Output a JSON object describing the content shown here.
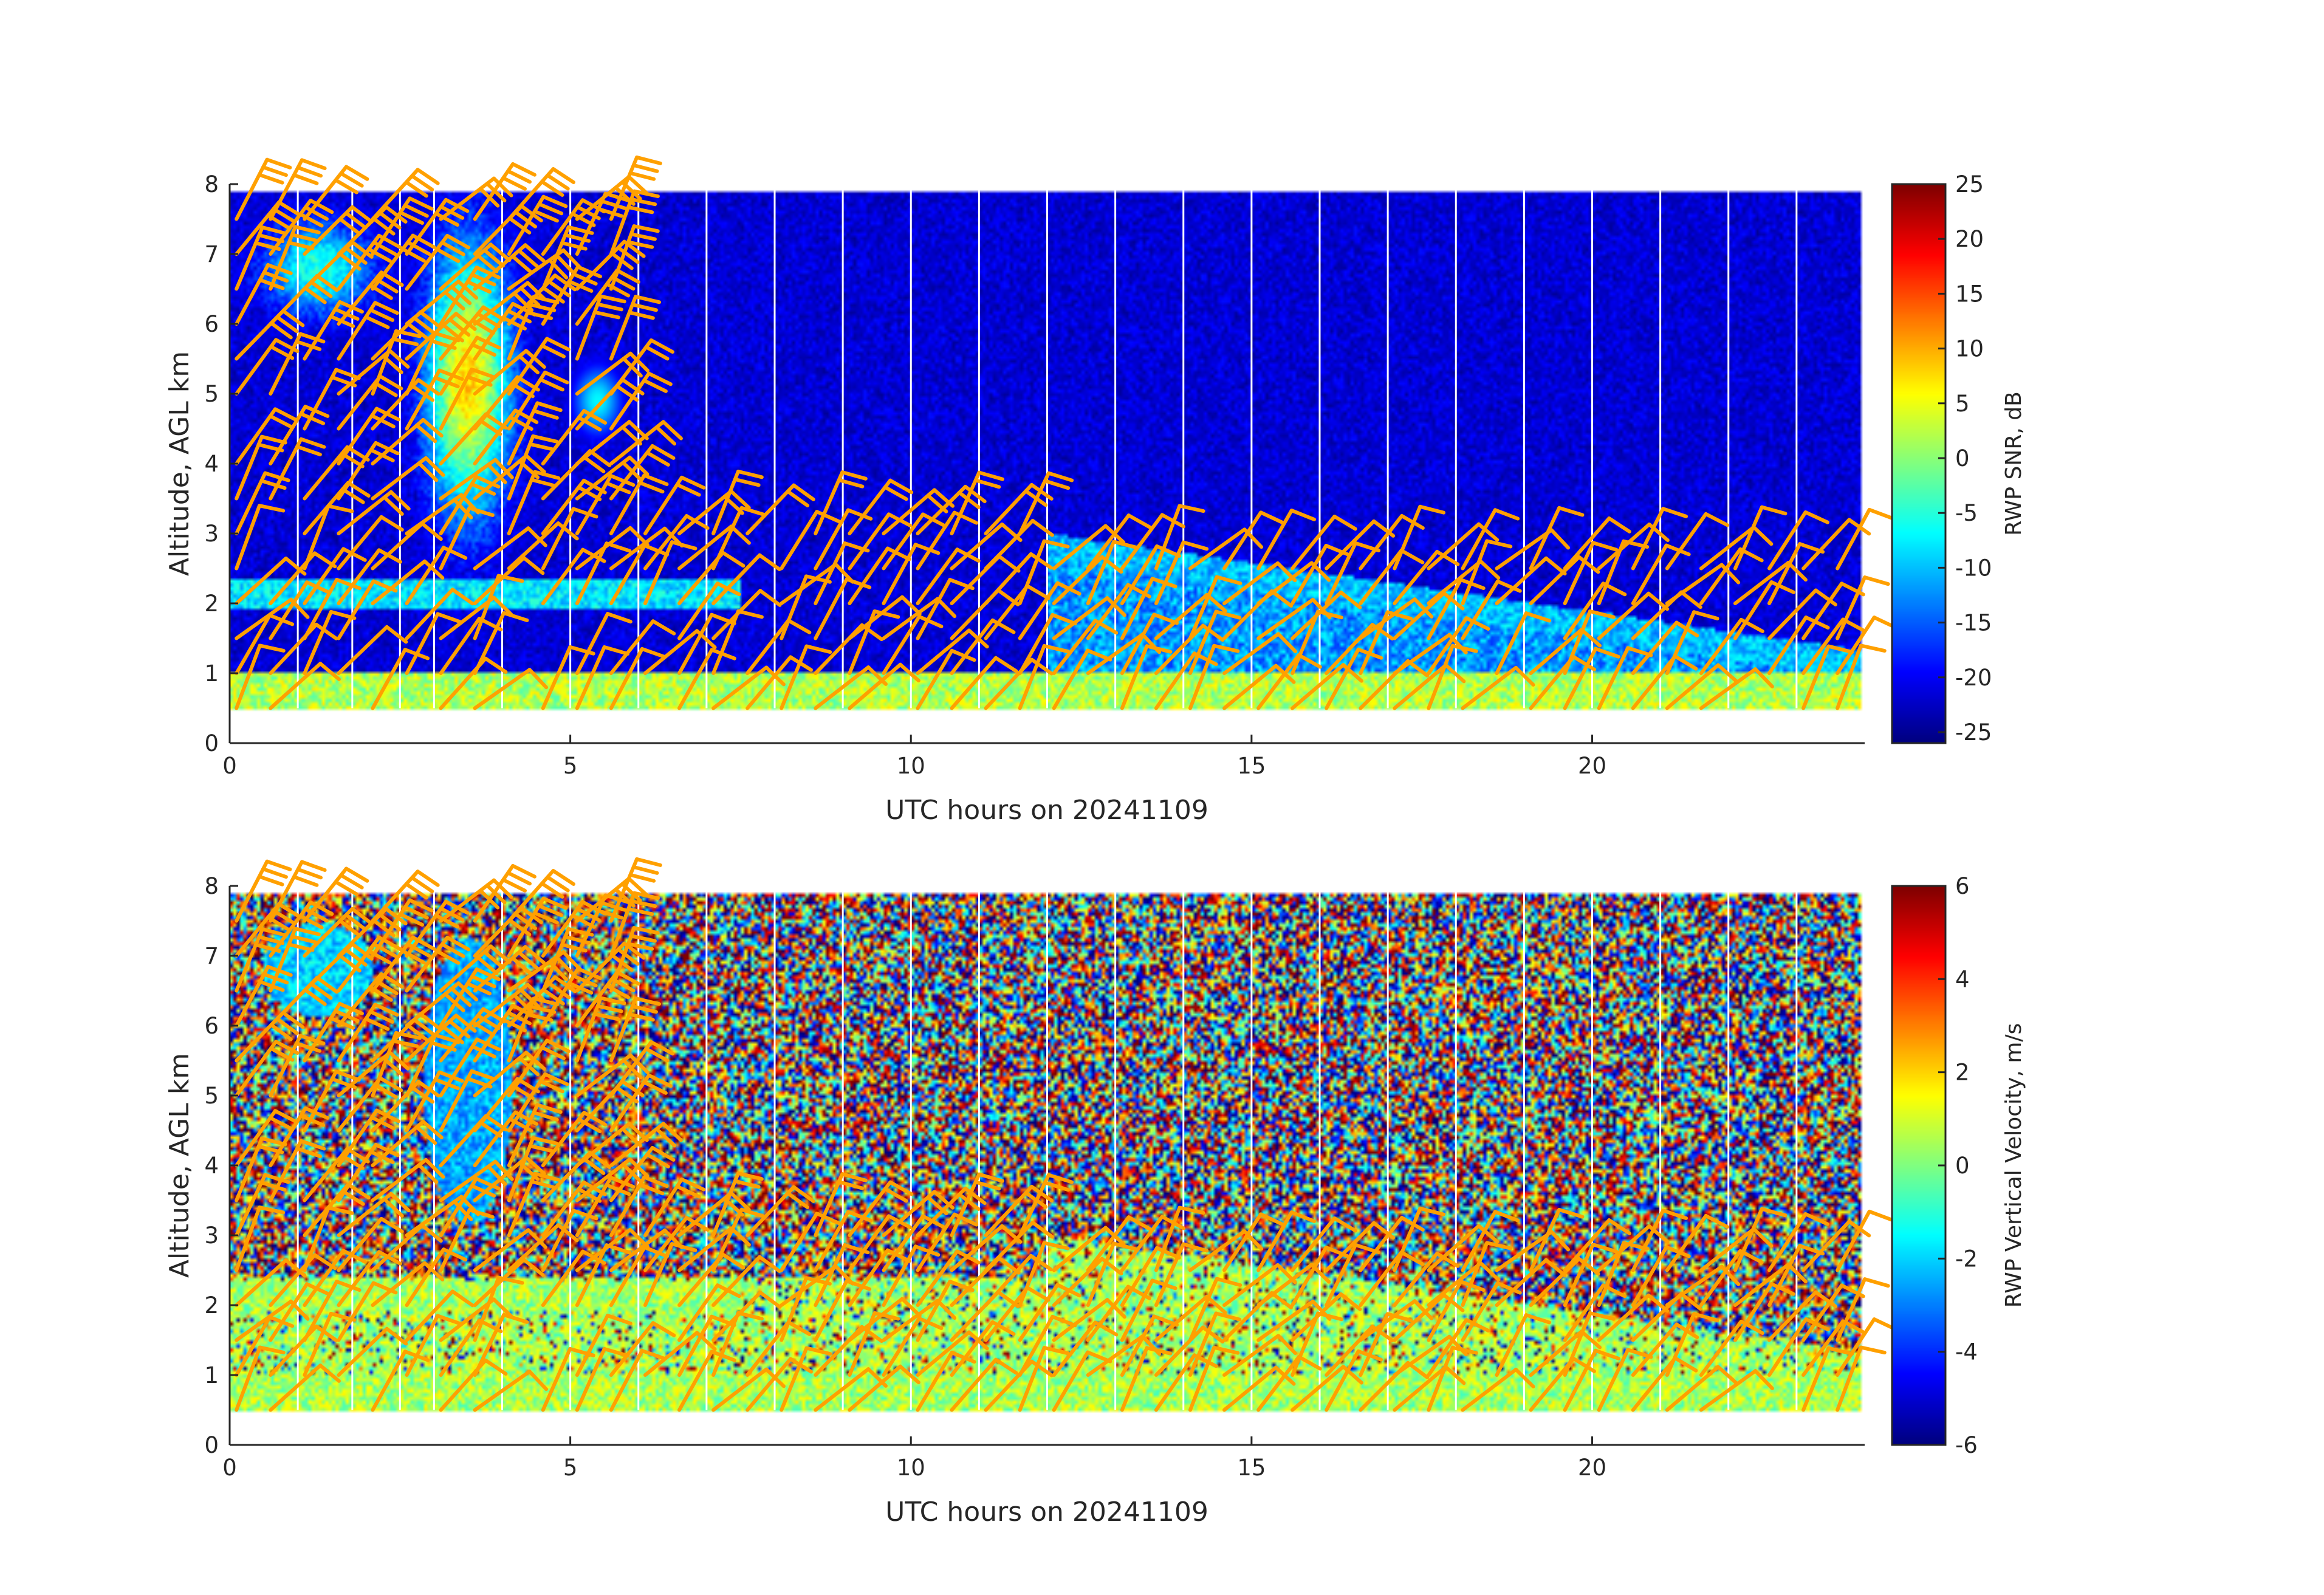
{
  "chart_data": [
    {
      "type": "heatmap",
      "title": "",
      "xlabel": "UTC hours on 20241109",
      "ylabel": "Altitude, AGL km",
      "xlim": [
        0,
        24
      ],
      "ylim": [
        0,
        8
      ],
      "xticks": [
        0,
        5,
        10,
        15,
        20
      ],
      "yticks": [
        0,
        1,
        2,
        3,
        4,
        5,
        6,
        7,
        8
      ],
      "colormap": "jet",
      "colorbar": {
        "label": "RWP SNR, dB",
        "clim": [
          -26,
          25
        ],
        "ticks": [
          25,
          20,
          15,
          10,
          5,
          0,
          -5,
          -10,
          -15,
          -20,
          -25
        ]
      },
      "field": "snr",
      "range_gates_km": [
        0.5,
        7.9
      ],
      "features": {
        "noise_floor_db": -22,
        "boundary_layer_db": 5,
        "convective_cloud_hours": [
          3.2,
          3.8
        ],
        "cloud_layer_km": [
          2.0,
          2.3
        ]
      },
      "overlay": "wind barbs",
      "barb_color": "#ffa000"
    },
    {
      "type": "heatmap",
      "title": "",
      "xlabel": "UTC hours on 20241109",
      "ylabel": "Altitude, AGL km",
      "xlim": [
        0,
        24
      ],
      "ylim": [
        0,
        8
      ],
      "xticks": [
        0,
        5,
        10,
        15,
        20
      ],
      "yticks": [
        0,
        1,
        2,
        3,
        4,
        5,
        6,
        7,
        8
      ],
      "colormap": "jet",
      "colorbar": {
        "label": "RWP Vertical Velocity, m/s",
        "clim": [
          -6,
          6
        ],
        "ticks": [
          6,
          4,
          2,
          0,
          -2,
          -4,
          -6
        ]
      },
      "field": "velocity",
      "range_gates_km": [
        0.5,
        7.9
      ],
      "features": {
        "signal_velocity_ms": 0.5,
        "cloud_velocity_ms": -2.5
      },
      "overlay": "wind barbs",
      "barb_color": "#ffa000"
    }
  ]
}
